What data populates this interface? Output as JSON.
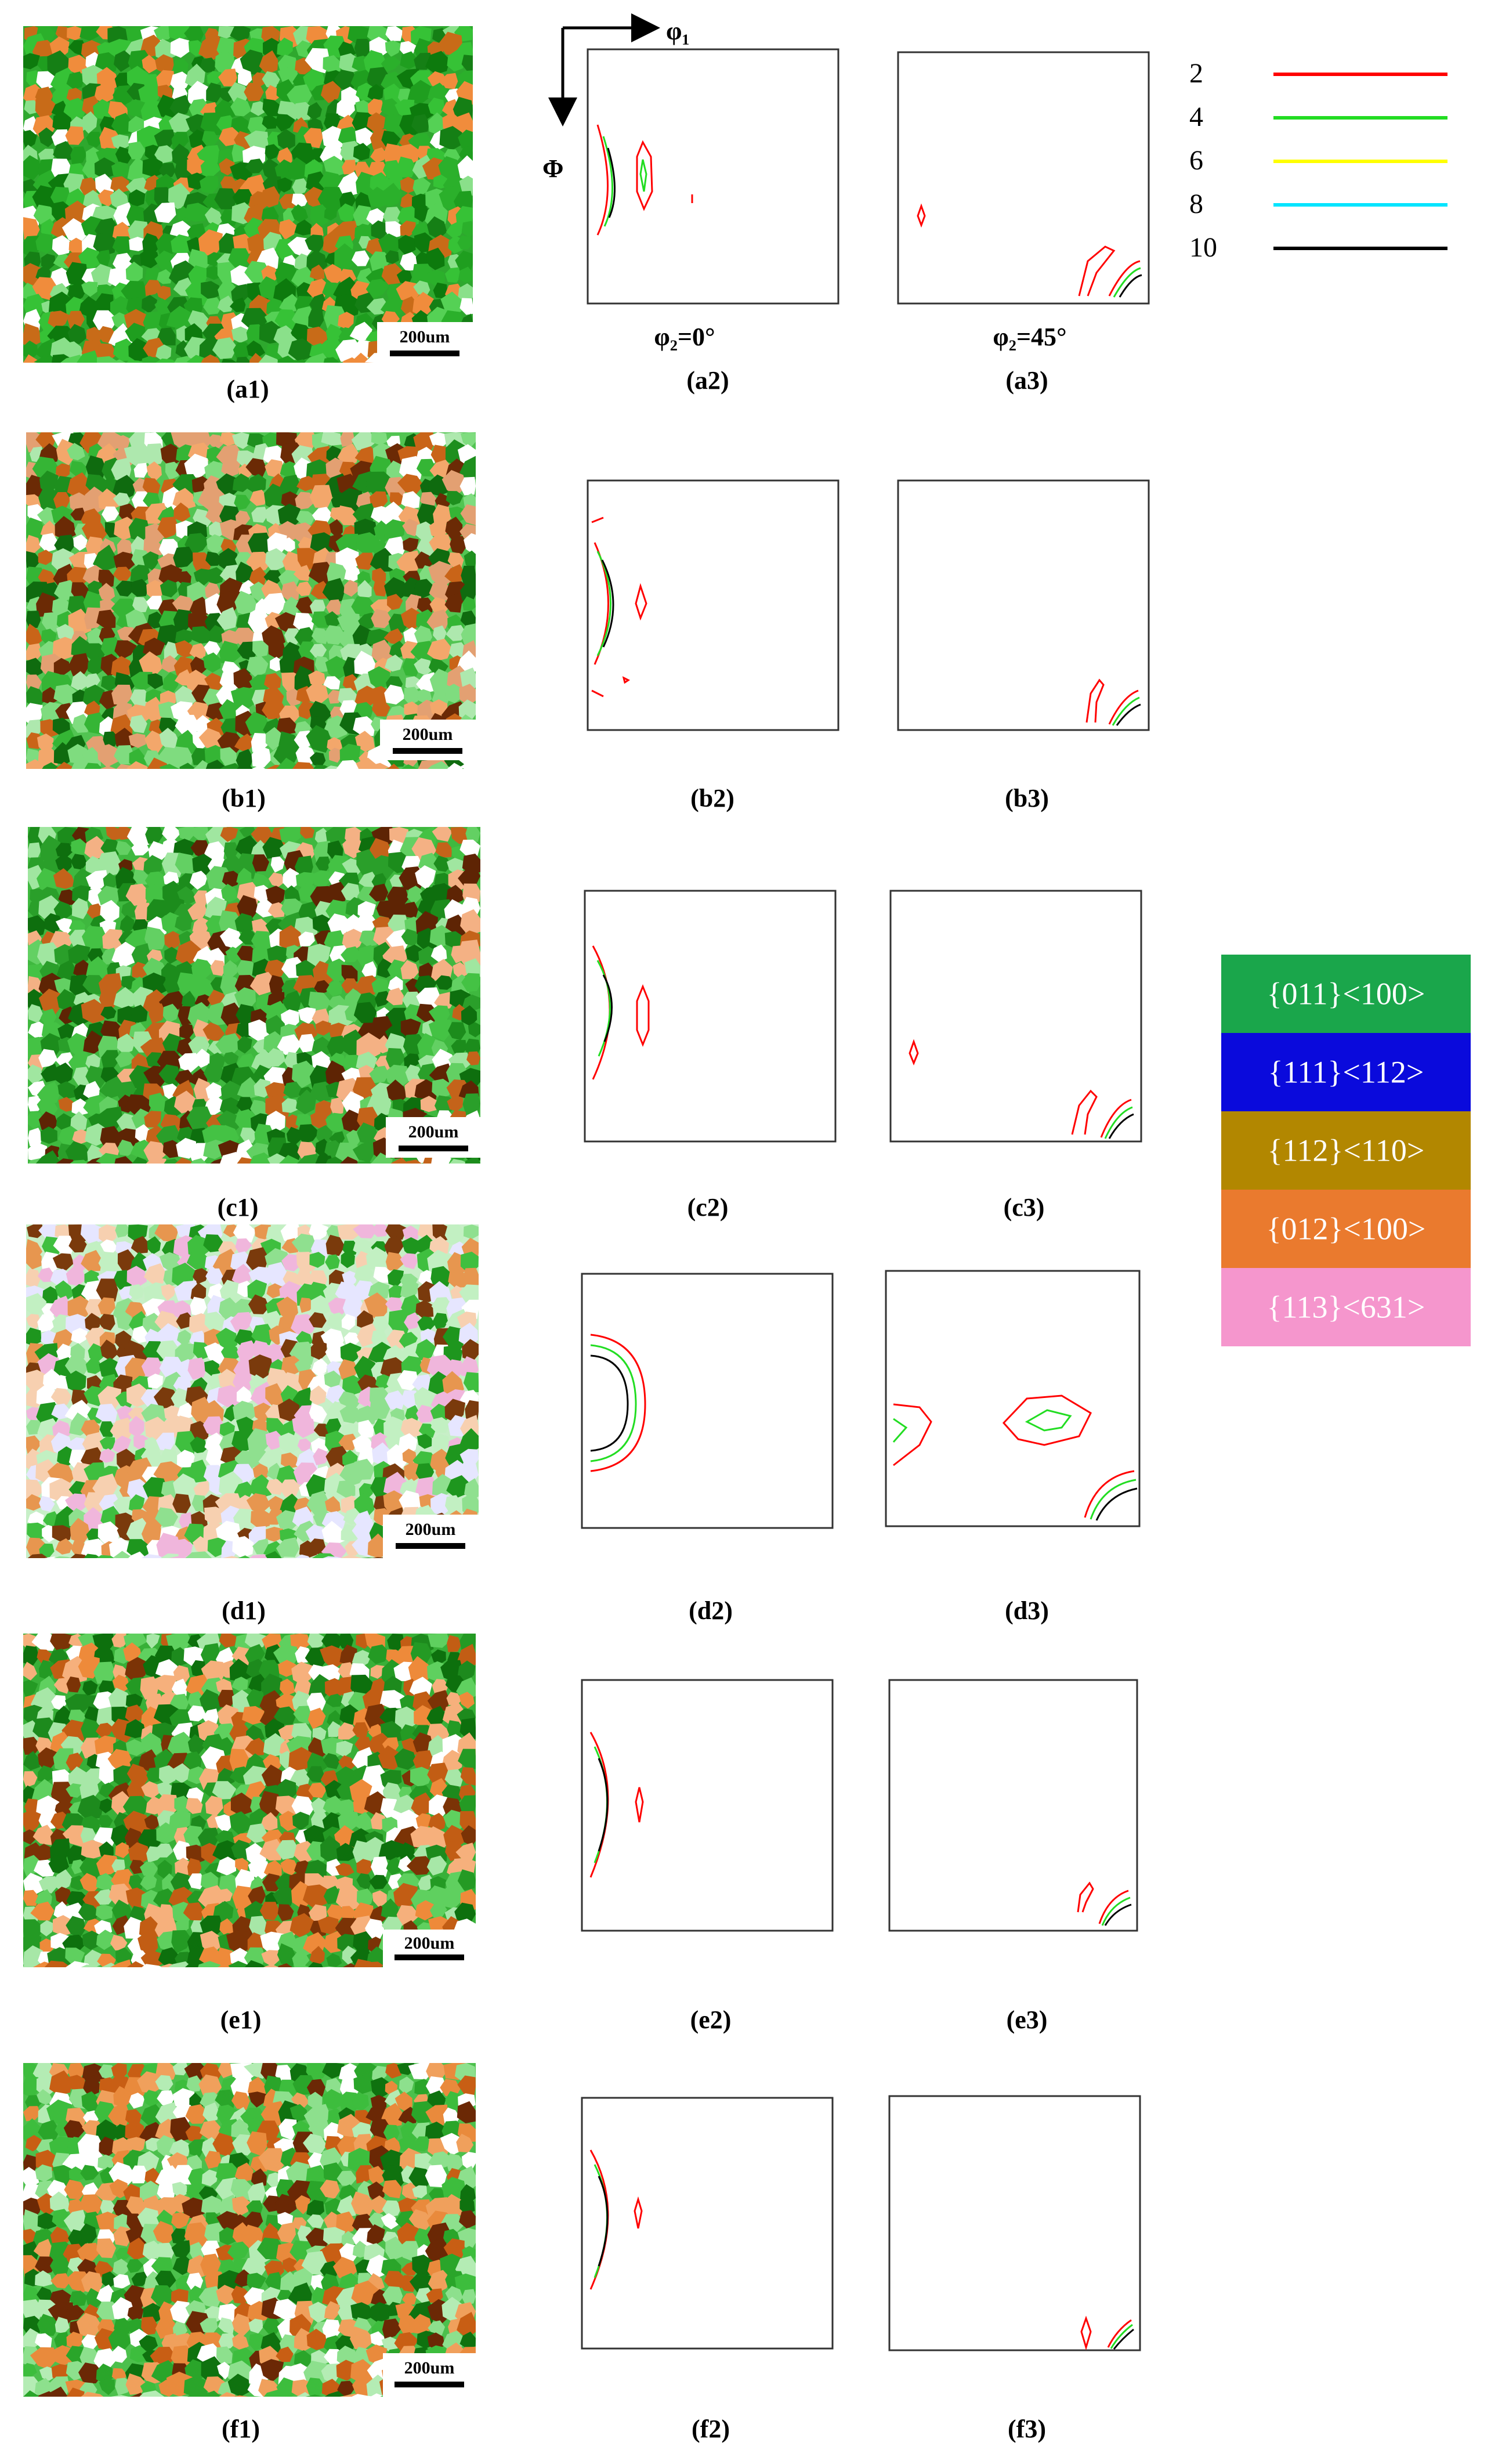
{
  "figure": {
    "axes": {
      "phi1": "φ₁",
      "Phi": "Φ",
      "phi2_0": "φ₂=0°",
      "phi2_45": "φ₂=45°"
    },
    "scale_bar": "200um",
    "rows": [
      {
        "map_label": "(a1)",
        "odf0_label": "(a2)",
        "odf45_label": "(a3)"
      },
      {
        "map_label": "(b1)",
        "odf0_label": "(b2)",
        "odf45_label": "(b3)"
      },
      {
        "map_label": "(c1)",
        "odf0_label": "(c2)",
        "odf45_label": "(c3)"
      },
      {
        "map_label": "(d1)",
        "odf0_label": "(d2)",
        "odf45_label": "(d3)"
      },
      {
        "map_label": "(e1)",
        "odf0_label": "(e2)",
        "odf45_label": "(e3)"
      },
      {
        "map_label": "(f1)",
        "odf0_label": "(f2)",
        "odf45_label": "(f3)"
      }
    ],
    "contour_legend": [
      {
        "level": "2",
        "color": "#ff0000"
      },
      {
        "level": "4",
        "color": "#22dd22"
      },
      {
        "level": "6",
        "color": "#ffff00"
      },
      {
        "level": "8",
        "color": "#00e5ff"
      },
      {
        "level": "10",
        "color": "#000000"
      }
    ],
    "texture_key": [
      {
        "label": "{011}<100>",
        "color": "#1aa64b"
      },
      {
        "label": "{111}<112>",
        "color": "#0a0adc"
      },
      {
        "label": "{112}<110>",
        "color": "#b28700"
      },
      {
        "label": "{012}<100>",
        "color": "#ea7a2e"
      },
      {
        "label": "{113}<631>",
        "color": "#f596cd"
      }
    ],
    "map_palettes": [
      {
        "bg": "#2ea82e",
        "cols": [
          "#1f9e1f",
          "#36c236",
          "#0d7a0d",
          "#55d155",
          "#8ae08a",
          "#2bb02b",
          "#c86b18",
          "#f08c3c",
          "#ffffff",
          "#157f15"
        ]
      },
      {
        "bg": "#52c452",
        "cols": [
          "#35b535",
          "#7fdc7f",
          "#ffffff",
          "#1e8f1e",
          "#f3a76b",
          "#c96418",
          "#e3a072",
          "#0f6b0f",
          "#6b2a05",
          "#aee8ae"
        ]
      },
      {
        "bg": "#3fb83f",
        "cols": [
          "#2a9f2a",
          "#63d063",
          "#0e6f0e",
          "#ffffff",
          "#c4631a",
          "#f4b184",
          "#a0e6a0",
          "#1c8c1c",
          "#5e2404",
          "#44c244"
        ]
      },
      {
        "bg": "#c7efc7",
        "cols": [
          "#ffffff",
          "#8fe08f",
          "#3fbf3f",
          "#f7d0b0",
          "#e7964f",
          "#f0b6dc",
          "#e6e6ff",
          "#1e961e",
          "#7a3a0c",
          "#c2f0c2"
        ]
      },
      {
        "bg": "#38b038",
        "cols": [
          "#249a24",
          "#5fd05f",
          "#0d700d",
          "#ee8a3a",
          "#c25d14",
          "#a7e7a7",
          "#ffffff",
          "#1d8a1d",
          "#f6b07c",
          "#7b3306"
        ]
      },
      {
        "bg": "#4cc04c",
        "cols": [
          "#8de08d",
          "#ffffff",
          "#2aa52a",
          "#0f720f",
          "#f0a05c",
          "#c85e14",
          "#b4ecb4",
          "#6b2805",
          "#e98a3c",
          "#3dbd3d"
        ]
      }
    ]
  }
}
